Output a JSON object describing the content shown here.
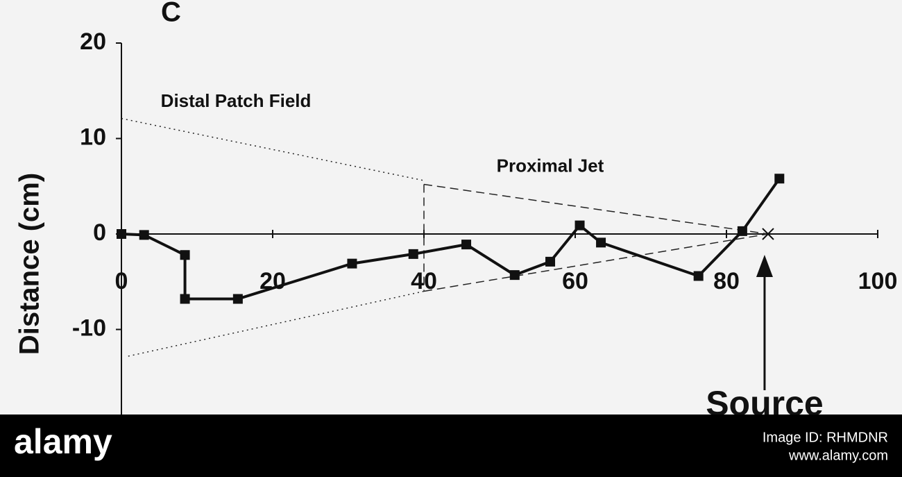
{
  "chart_data": {
    "type": "line",
    "title": "C",
    "y_label": "Distance (cm)",
    "x": [
      0,
      3,
      8.4,
      8.4,
      15.4,
      30.5,
      38.6,
      45.6,
      52,
      56.7,
      60.6,
      63.4,
      76.3,
      82.1,
      87
    ],
    "series": [
      {
        "color": "#111111",
        "values": [
          0,
          -0.1,
          -2.2,
          -6.8,
          -6.8,
          -3.1,
          -2.1,
          -1.1,
          -4.3,
          -2.9,
          0.9,
          -0.9,
          -4.4,
          0.3,
          5.8
        ]
      }
    ],
    "xlim": [
      0,
      100
    ],
    "xticks": [
      0,
      20,
      40,
      60,
      80,
      100
    ],
    "ylim": [
      -20,
      20
    ],
    "yticks": [
      20,
      10,
      0,
      -10
    ],
    "guides": [
      {
        "style": "dotted",
        "x": [
          0,
          40
        ],
        "y": [
          12.1,
          5.6
        ]
      },
      {
        "style": "dashed",
        "x": [
          40,
          85.5
        ],
        "y": [
          5.2,
          0
        ]
      },
      {
        "style": "dotted",
        "x": [
          0.9,
          40
        ],
        "y": [
          -12.8,
          -6
        ]
      },
      {
        "style": "dashed",
        "x": [
          40,
          85.5
        ],
        "y": [
          -6,
          0
        ]
      },
      {
        "style": "dashed",
        "x": [
          40,
          40
        ],
        "y": [
          5.2,
          -6
        ]
      }
    ],
    "annotations": [
      {
        "text": "Distal Patch Field",
        "x": 5.2,
        "y": 13.8
      },
      {
        "text": "Proximal Jet",
        "x": 49.6,
        "y": 7
      }
    ],
    "source": {
      "text": "Source",
      "x": 85.5
    }
  },
  "watermark": {
    "logo": "alamy",
    "image_id": "Image ID: RHMDNR",
    "url": "www.alamy.com"
  }
}
